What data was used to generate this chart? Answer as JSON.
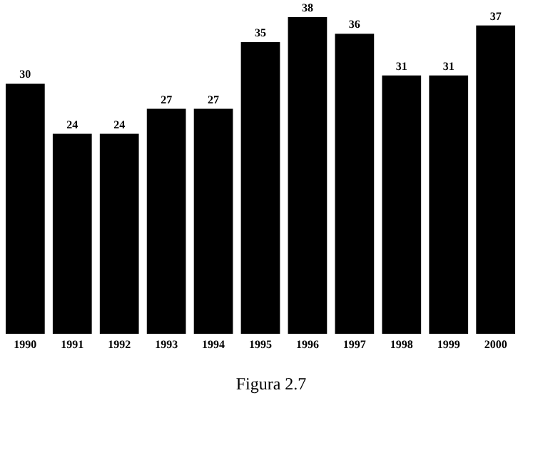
{
  "chart_data": {
    "type": "bar",
    "categories": [
      "1990",
      "1991",
      "1992",
      "1993",
      "1994",
      "1995",
      "1996",
      "1997",
      "1998",
      "1999",
      "2000"
    ],
    "values": [
      30,
      24,
      24,
      27,
      27,
      35,
      38,
      36,
      31,
      31,
      37
    ],
    "color": "#000000",
    "data_labels": true,
    "annotations": [
      "Figura 2.7"
    ]
  }
}
